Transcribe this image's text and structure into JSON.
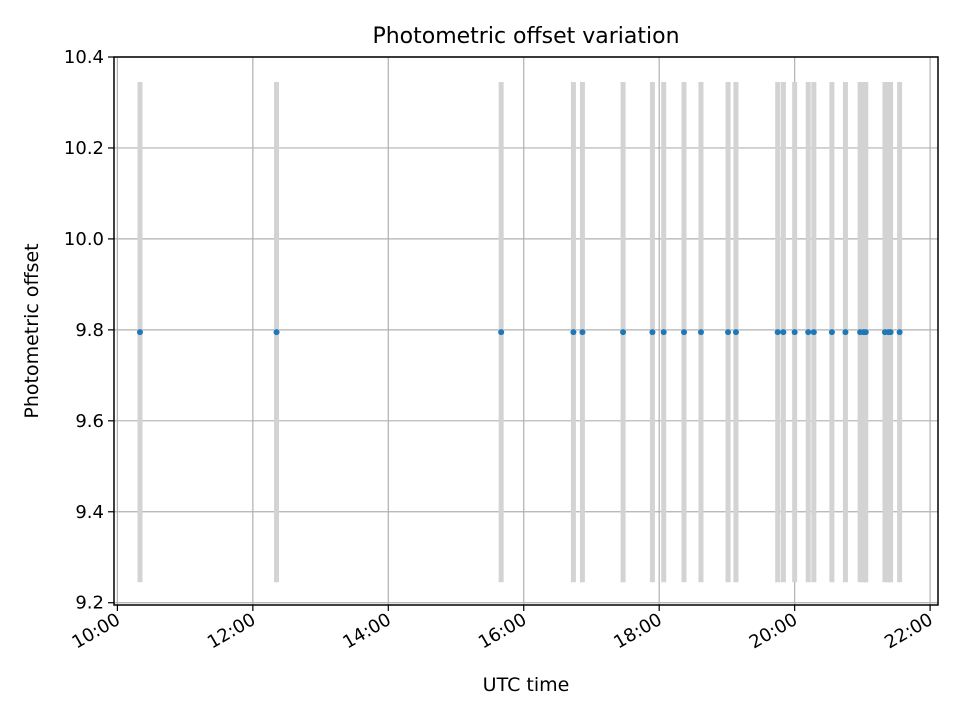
{
  "chart_data": {
    "type": "scatter",
    "title": "Photometric offset variation",
    "xlabel": "UTC time",
    "ylabel": "Photometric offset",
    "xlim": [
      "09:57",
      "22:07"
    ],
    "ylim": [
      9.195,
      10.4
    ],
    "x_ticks": [
      "10:00",
      "12:00",
      "14:00",
      "16:00",
      "18:00",
      "20:00",
      "22:00"
    ],
    "y_ticks": [
      "9.2",
      "9.4",
      "9.6",
      "9.8",
      "10.0",
      "10.2",
      "10.4"
    ],
    "grid": true,
    "point_color": "#1f77b4",
    "errorbar_color": "#d3d3d3",
    "series": [
      {
        "x": [
          "10:20",
          "12:21",
          "15:40",
          "16:44",
          "16:52",
          "17:28",
          "17:54",
          "18:04",
          "18:22",
          "18:37",
          "19:01",
          "19:08",
          "19:45",
          "19:50",
          "20:00",
          "20:12",
          "20:17",
          "20:33",
          "20:45",
          "20:58",
          "21:01",
          "21:03",
          "21:20",
          "21:23",
          "21:25",
          "21:33"
        ],
        "y": [
          9.795,
          9.795,
          9.795,
          9.795,
          9.795,
          9.795,
          9.795,
          9.795,
          9.795,
          9.795,
          9.795,
          9.795,
          9.795,
          9.795,
          9.795,
          9.795,
          9.795,
          9.795,
          9.795,
          9.795,
          9.795,
          9.795,
          9.795,
          9.795,
          9.795,
          9.795
        ],
        "yerr": [
          0.55,
          0.55,
          0.55,
          0.55,
          0.55,
          0.55,
          0.55,
          0.55,
          0.55,
          0.55,
          0.55,
          0.55,
          0.55,
          0.55,
          0.55,
          0.55,
          0.55,
          0.55,
          0.55,
          0.55,
          0.55,
          0.55,
          0.55,
          0.55,
          0.55,
          0.55
        ]
      }
    ]
  }
}
